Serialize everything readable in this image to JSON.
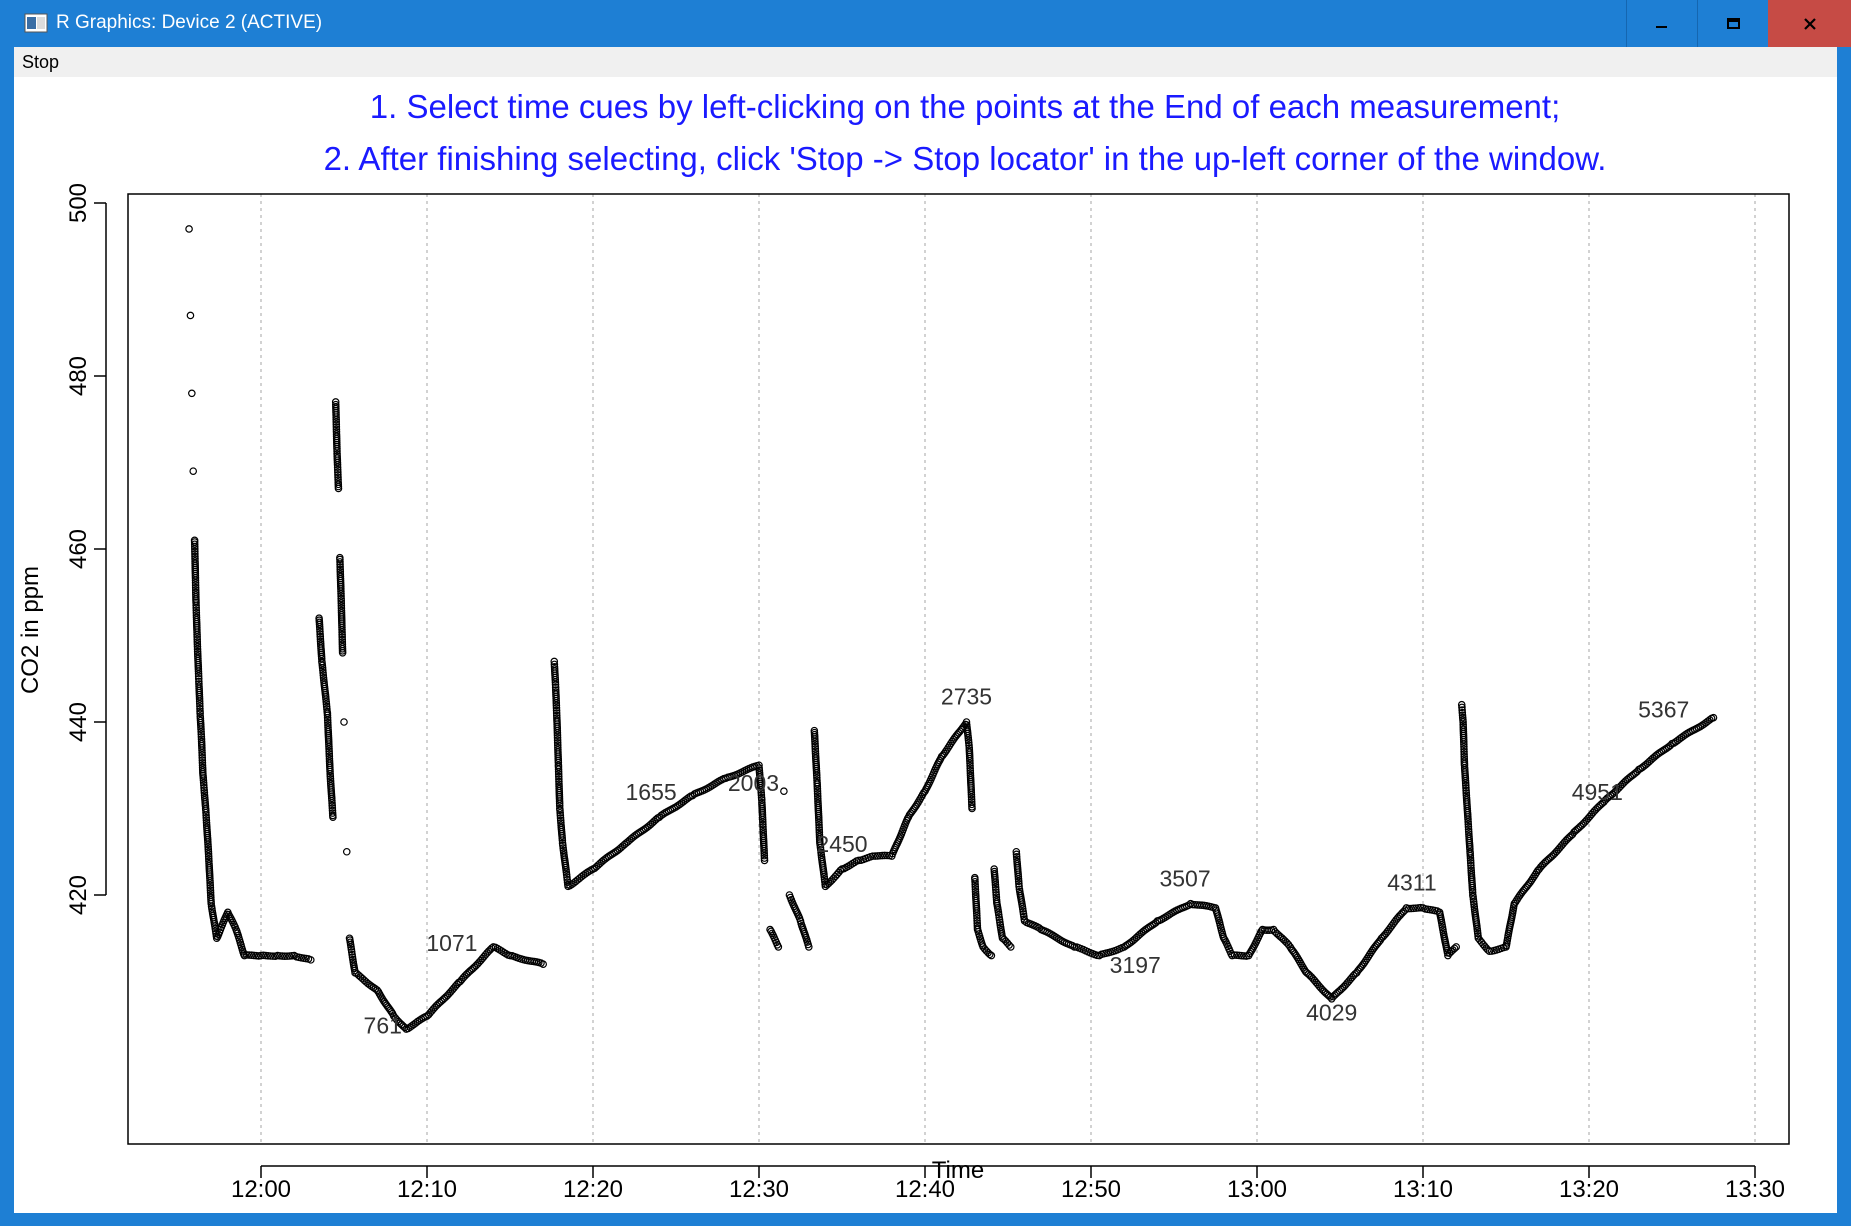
{
  "window": {
    "title": "R Graphics: Device 2 (ACTIVE)",
    "buttons": {
      "minimize": "–",
      "maximize": "□",
      "close": "✕"
    },
    "icon": "r-graphics-app-icon",
    "accent": "#1e7fd4",
    "close_color": "#c64b45"
  },
  "menu": {
    "items": [
      "Stop"
    ]
  },
  "instructions": [
    "1. Select time cues by left-clicking on the points at the End of each measurement;",
    "2. After finishing selecting, click 'Stop -> Stop locator' in the up-left corner of the window."
  ],
  "instruction_color": "#1a1aff",
  "chart_data": {
    "type": "scatter",
    "title": "",
    "xlabel": "Time",
    "ylabel": "CO2 in ppm",
    "xlim": [
      "11:52",
      "13:30"
    ],
    "ylim": [
      400,
      500
    ],
    "x_ticks": [
      "12:00",
      "12:10",
      "12:20",
      "12:30",
      "12:40",
      "12:50",
      "13:00",
      "13:10",
      "13:20",
      "13:30"
    ],
    "y_ticks": [
      420,
      440,
      460,
      480,
      500
    ],
    "grid": "vertical dotted at x ticks",
    "marker": "open circle",
    "series": [
      {
        "points": [
          [
            "11:55:40",
            497
          ],
          [
            "11:55:45",
            487
          ],
          [
            "11:55:50",
            478
          ],
          [
            "11:55:55",
            469
          ],
          [
            "11:56:00",
            461
          ],
          [
            "11:56:05",
            454
          ],
          [
            "11:56:10",
            449
          ],
          [
            "11:56:15",
            445
          ],
          [
            "11:56:20",
            441
          ],
          [
            "11:56:25",
            438
          ],
          [
            "11:56:30",
            434
          ],
          [
            "11:56:40",
            430
          ],
          [
            "11:56:50",
            425
          ],
          [
            "11:57:00",
            419
          ],
          [
            "11:57:20",
            415
          ],
          [
            "11:58:00",
            418
          ],
          [
            "11:58:30",
            416
          ],
          [
            "11:59:00",
            413
          ],
          [
            "12:00:00",
            413
          ],
          [
            "12:01:00",
            413
          ],
          [
            "12:02:00",
            413
          ],
          [
            "12:03:00",
            412.5
          ],
          [
            "12:03:30",
            452
          ],
          [
            "12:03:40",
            447
          ],
          [
            "12:04:00",
            441
          ],
          [
            "12:04:10",
            434
          ],
          [
            "12:04:20",
            429
          ],
          [
            "12:04:30",
            477
          ],
          [
            "12:04:35",
            471
          ],
          [
            "12:04:40",
            467
          ],
          [
            "12:04:45",
            459
          ],
          [
            "12:04:50",
            454
          ],
          [
            "12:04:55",
            448
          ],
          [
            "12:05:00",
            440
          ],
          [
            "12:05:10",
            425
          ],
          [
            "12:05:20",
            415
          ],
          [
            "12:05:40",
            411
          ],
          [
            "12:07:00",
            409
          ],
          [
            "12:08:00",
            406
          ],
          [
            "12:08:45",
            404.5
          ],
          [
            "12:10:00",
            406
          ],
          [
            "12:12:00",
            410
          ],
          [
            "12:14:00",
            414
          ],
          [
            "12:15:00",
            413
          ],
          [
            "12:17:00",
            412
          ],
          [
            "12:17:40",
            447
          ],
          [
            "12:17:45",
            444
          ],
          [
            "12:17:50",
            440
          ],
          [
            "12:17:55",
            435
          ],
          [
            "12:18:00",
            430
          ],
          [
            "12:18:10",
            426
          ],
          [
            "12:18:30",
            421
          ],
          [
            "12:20:00",
            423
          ],
          [
            "12:22:00",
            426
          ],
          [
            "12:24:00",
            429
          ],
          [
            "12:26:00",
            431.5
          ],
          [
            "12:28:00",
            433.5
          ],
          [
            "12:30:00",
            435
          ],
          [
            "12:30:10",
            431
          ],
          [
            "12:30:20",
            424
          ],
          [
            "12:30:40",
            416
          ],
          [
            "12:31:10",
            414
          ],
          [
            "12:31:30",
            432
          ],
          [
            "12:31:50",
            420
          ],
          [
            "12:32:30",
            417
          ],
          [
            "12:33:00",
            414
          ],
          [
            "12:33:20",
            439
          ],
          [
            "12:33:30",
            433
          ],
          [
            "12:33:40",
            426
          ],
          [
            "12:34:00",
            421
          ],
          [
            "12:35:00",
            423
          ],
          [
            "12:36:00",
            424
          ],
          [
            "12:37:00",
            424.5
          ],
          [
            "12:38:00",
            424.5
          ],
          [
            "12:39:00",
            429
          ],
          [
            "12:40:00",
            432
          ],
          [
            "12:41:00",
            436
          ],
          [
            "12:42:30",
            440
          ],
          [
            "12:42:40",
            437
          ],
          [
            "12:42:50",
            430
          ],
          [
            "12:43:00",
            422
          ],
          [
            "12:43:10",
            416
          ],
          [
            "12:43:30",
            414
          ],
          [
            "12:44:00",
            413
          ],
          [
            "12:44:10",
            423
          ],
          [
            "12:44:20",
            419
          ],
          [
            "12:44:40",
            415
          ],
          [
            "12:45:10",
            414
          ],
          [
            "12:45:30",
            425
          ],
          [
            "12:45:40",
            421
          ],
          [
            "12:46:00",
            417
          ],
          [
            "12:47:00",
            416
          ],
          [
            "12:49:00",
            414
          ],
          [
            "12:50:30",
            413
          ],
          [
            "12:52:00",
            414
          ],
          [
            "12:54:00",
            417
          ],
          [
            "12:56:00",
            419
          ],
          [
            "12:57:30",
            418.5
          ],
          [
            "12:58:00",
            415
          ],
          [
            "12:58:30",
            413
          ],
          [
            "12:59:30",
            413
          ],
          [
            "13:00:20",
            416
          ],
          [
            "13:01:00",
            416
          ],
          [
            "13:02:00",
            414
          ],
          [
            "13:03:00",
            411
          ],
          [
            "13:04:30",
            408
          ],
          [
            "13:06:00",
            411
          ],
          [
            "13:07:30",
            415
          ],
          [
            "13:09:00",
            418.5
          ],
          [
            "13:10:00",
            418.5
          ],
          [
            "13:11:00",
            418
          ],
          [
            "13:11:30",
            413
          ],
          [
            "13:12:00",
            414
          ],
          [
            "13:12:20",
            442
          ],
          [
            "13:12:25",
            440
          ],
          [
            "13:12:30",
            435
          ],
          [
            "13:12:40",
            430
          ],
          [
            "13:12:50",
            425
          ],
          [
            "13:13:00",
            420
          ],
          [
            "13:13:20",
            415
          ],
          [
            "13:14:00",
            413.5
          ],
          [
            "13:15:00",
            414
          ],
          [
            "13:15:30",
            419
          ],
          [
            "13:17:00",
            423
          ],
          [
            "13:19:00",
            427
          ],
          [
            "13:21:00",
            431
          ],
          [
            "13:23:00",
            434.5
          ],
          [
            "13:25:00",
            437.5
          ],
          [
            "13:27:30",
            440.5
          ]
        ]
      }
    ],
    "annotations": [
      {
        "label": "761",
        "x": "12:07:20",
        "y": 404
      },
      {
        "label": "1071",
        "x": "12:11:30",
        "y": 413.5
      },
      {
        "label": "1655",
        "x": "12:23:30",
        "y": 431
      },
      {
        "label": "2003",
        "x": "12:29:40",
        "y": 432
      },
      {
        "label": "2450",
        "x": "12:35:00",
        "y": 425
      },
      {
        "label": "2735",
        "x": "12:42:30",
        "y": 442
      },
      {
        "label": "3197",
        "x": "12:52:40",
        "y": 411
      },
      {
        "label": "3507",
        "x": "12:55:40",
        "y": 421
      },
      {
        "label": "4029",
        "x": "13:04:30",
        "y": 405.5
      },
      {
        "label": "4311",
        "x": "13:09:20",
        "y": 420.5
      },
      {
        "label": "4951",
        "x": "13:20:30",
        "y": 431
      },
      {
        "label": "5367",
        "x": "13:24:30",
        "y": 440.5
      }
    ]
  }
}
